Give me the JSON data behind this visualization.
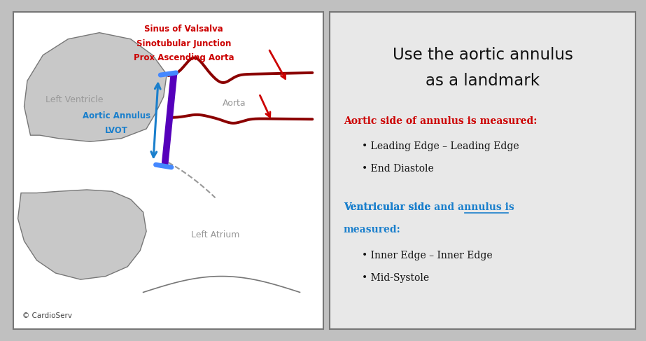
{
  "bg_outer": "#c0c0c0",
  "bg_left_panel": "#ffffff",
  "bg_right_panel": "#e8e8e8",
  "title_line1": "Use the aortic annulus",
  "title_line2": "as a landmark",
  "title_color": "#111111",
  "title_fontsize": 16,
  "aortic_header": "Aortic side of annulus is measured:",
  "aortic_color": "#cc0000",
  "aortic_bullets": [
    "Leading Edge – Leading Edge",
    "End Diastole"
  ],
  "ventricular_color": "#1a7fcc",
  "ventricular_bullets": [
    "Inner Edge – Inner Edge",
    "Mid-Systole"
  ],
  "bullet_color": "#111111",
  "label_left_ventricle": "Left Ventricle",
  "label_aorta": "Aorta",
  "label_left_atrium": "Left Atrium",
  "label_annulus_line1": "Aortic Annulus",
  "label_annulus_line2": "LVOT",
  "label_sinus_line1": "Sinus of Valsalva",
  "label_sinus_line2": "Sinotubular Junction",
  "label_sinus_line3": "Prox Ascending Aorta",
  "label_sinus_color": "#cc0000",
  "label_annulus_color": "#1a7fcc",
  "label_gray_color": "#999999",
  "copyright": "© CardioServ",
  "copyright_color": "#444444",
  "purple_color": "#5500bb",
  "blue_arrow_color": "#1a7fcc",
  "dark_red": "#8b0000",
  "red_arrow_color": "#cc0000"
}
